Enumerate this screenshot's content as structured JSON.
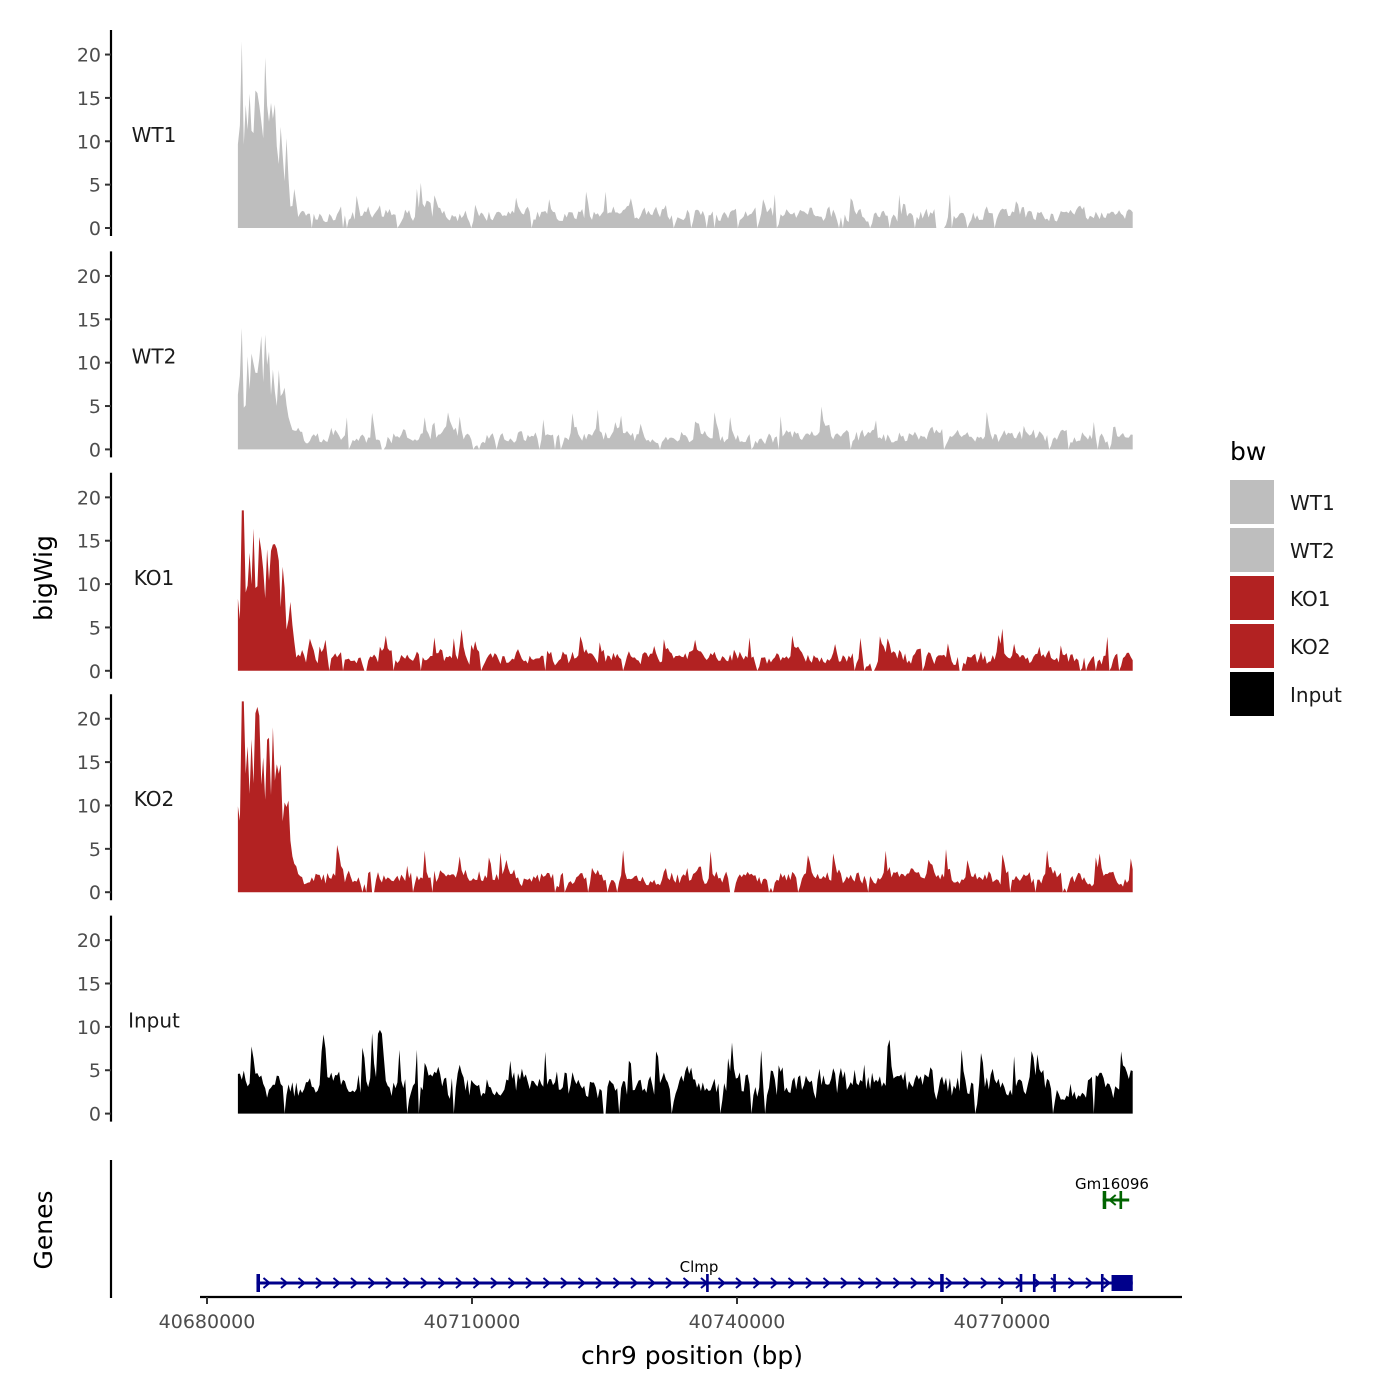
{
  "chart_data": {
    "type": "area",
    "ylabel": "bigWig",
    "xlabel": "chr9 position (bp)",
    "region_start": 40683500,
    "region_end": 40784800,
    "xlim": [
      40680000,
      40790000
    ],
    "ylim": [
      0,
      23
    ],
    "y_ticks": [
      "0",
      "5",
      "10",
      "15",
      "20"
    ],
    "x_ticks": [
      "40680000",
      "40710000",
      "40740000",
      "40770000"
    ],
    "x_tick_values": [
      40680000,
      40710000,
      40740000,
      40770000
    ],
    "legend": {
      "title": "bw",
      "position": "right",
      "entries": [
        {
          "label": "WT1",
          "color": "#bebebe"
        },
        {
          "label": "WT2",
          "color": "#bebebe"
        },
        {
          "label": "KO1",
          "color": "#b22222"
        },
        {
          "label": "KO2",
          "color": "#b22222"
        },
        {
          "label": "Input",
          "color": "#000000"
        }
      ]
    },
    "series": [
      {
        "name": "WT1",
        "color": "#bebebe",
        "peak_start": 21.5,
        "peak_end_frac": 0.055,
        "baseline": 2.2,
        "noise": 2.6,
        "max_spike": 8.5,
        "gaps": [
          [
            0.78,
            0.79
          ]
        ]
      },
      {
        "name": "WT2",
        "color": "#bebebe",
        "peak_start": 14,
        "peak_end_frac": 0.055,
        "baseline": 2.0,
        "noise": 2.4,
        "max_spike": 8,
        "gaps": [
          [
            0.16,
            0.165
          ]
        ]
      },
      {
        "name": "KO1",
        "color": "#b22222",
        "peak_start": 18.5,
        "peak_end_frac": 0.06,
        "baseline": 1.8,
        "noise": 2.6,
        "max_spike": 7,
        "gaps": [
          [
            0.14,
            0.145
          ],
          [
            0.805,
            0.81
          ]
        ]
      },
      {
        "name": "KO2",
        "color": "#b22222",
        "peak_start": 22,
        "peak_end_frac": 0.06,
        "baseline": 2.2,
        "noise": 2.8,
        "max_spike": 9,
        "gaps": [
          [
            0.55,
            0.555
          ]
        ]
      },
      {
        "name": "Input",
        "color": "#000000",
        "peak_start": 0,
        "peak_end_frac": 0,
        "baseline": 5.5,
        "noise": 5.0,
        "max_spike": 14.5,
        "gaps": []
      }
    ],
    "genes_track": {
      "label": "Genes",
      "genes": [
        {
          "name": "Clmp",
          "start": 40685600,
          "end": 40784800,
          "strand": "+",
          "color": "#00008b",
          "row": 0,
          "exons": [
            [
              40685600,
              40686000
            ],
            [
              40736500,
              40736800
            ],
            [
              40763000,
              40763400
            ],
            [
              40772000,
              40772300
            ],
            [
              40773500,
              40773800
            ],
            [
              40775800,
              40776100
            ],
            [
              40781200,
              40781500
            ],
            [
              40782400,
              40784800
            ]
          ]
        },
        {
          "name": "Gm16096",
          "start": 40781400,
          "end": 40784400,
          "strand": "-",
          "color": "#006400",
          "row": 1,
          "exons": [
            [
              40781400,
              40781800
            ],
            [
              40783300,
              40783600
            ]
          ]
        }
      ]
    }
  }
}
